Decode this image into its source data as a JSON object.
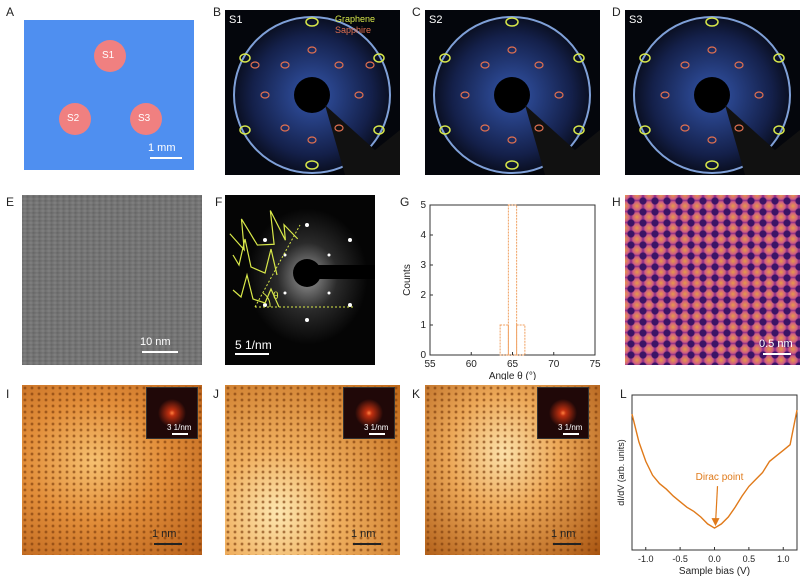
{
  "panels": {
    "A": {
      "letter": "A",
      "samples": [
        "S1",
        "S2",
        "S3"
      ],
      "scale": "1 mm"
    },
    "B": {
      "letter": "B",
      "sample": "S1"
    },
    "C": {
      "letter": "C",
      "sample": "S2"
    },
    "D": {
      "letter": "D",
      "sample": "S3"
    },
    "E": {
      "letter": "E",
      "scale": "10 nm"
    },
    "F": {
      "letter": "F",
      "scale": "5 1/nm",
      "angle_symbol": "θ"
    },
    "G": {
      "letter": "G"
    },
    "H": {
      "letter": "H",
      "scale": "0.5 nm"
    },
    "I": {
      "letter": "I",
      "scale": "1 nm",
      "inset_scale": "3 1/nm"
    },
    "J": {
      "letter": "J",
      "scale": "1 nm",
      "inset_scale": "3 1/nm"
    },
    "K": {
      "letter": "K",
      "scale": "1 nm",
      "inset_scale": "3 1/nm"
    },
    "L": {
      "letter": "L"
    }
  },
  "legend": {
    "graphene": "Graphene",
    "sapphire": "Sapphire",
    "graphene_color": "#d8e84a",
    "sapphire_color": "#e07050"
  },
  "chart_data": [
    {
      "type": "bar",
      "panel": "G",
      "xlabel": "Angle θ (°)",
      "ylabel": "Counts",
      "xlim": [
        55,
        75
      ],
      "ylim": [
        0,
        5
      ],
      "xticks": [
        55,
        60,
        65,
        70,
        75
      ],
      "yticks": [
        0,
        1,
        2,
        3,
        4,
        5
      ],
      "bins": [
        {
          "x": 64,
          "count": 1
        },
        {
          "x": 65,
          "count": 5
        },
        {
          "x": 66,
          "count": 1
        }
      ],
      "bar_color": "#f0a060"
    },
    {
      "type": "line",
      "panel": "L",
      "xlabel": "Sample bias (V)",
      "ylabel": "dI/dV (arb. units)",
      "xlim": [
        -1.2,
        1.2
      ],
      "xticks": [
        -1.0,
        -0.5,
        0.0,
        0.5,
        1.0
      ],
      "xtick_labels": [
        "-1.0",
        "-0.5",
        "0.0",
        "0.5",
        "1.0"
      ],
      "annotation": "Dirac point",
      "line_color": "#e07a1a",
      "x": [
        -1.2,
        -1.1,
        -1.0,
        -0.9,
        -0.8,
        -0.7,
        -0.6,
        -0.5,
        -0.4,
        -0.3,
        -0.2,
        -0.1,
        0.0,
        0.1,
        0.2,
        0.3,
        0.4,
        0.5,
        0.6,
        0.7,
        0.8,
        0.9,
        1.0,
        1.1,
        1.2
      ],
      "y": [
        0.92,
        0.72,
        0.58,
        0.48,
        0.42,
        0.38,
        0.33,
        0.29,
        0.25,
        0.22,
        0.18,
        0.13,
        0.1,
        0.13,
        0.18,
        0.25,
        0.33,
        0.4,
        0.45,
        0.5,
        0.58,
        0.62,
        0.66,
        0.7,
        0.95
      ]
    }
  ]
}
